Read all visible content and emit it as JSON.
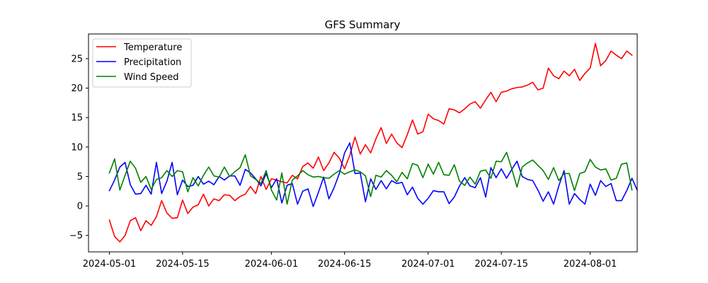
{
  "chart_data": {
    "type": "line",
    "title": "GFS Summary",
    "xlabel": "",
    "ylabel": "",
    "start_date": "2024-05-01",
    "x_step_days": 1,
    "xlim": [
      "2024-04-27",
      "2024-08-10"
    ],
    "ylim": [
      -7.8,
      29.2
    ],
    "x_ticks": [
      "2024-05-01",
      "2024-05-15",
      "2024-06-01",
      "2024-06-15",
      "2024-07-01",
      "2024-07-15",
      "2024-08-01"
    ],
    "y_ticks": [
      -5,
      0,
      5,
      10,
      15,
      20,
      25
    ],
    "grid": false,
    "legend_position": "top-left",
    "series": [
      {
        "name": "Temperature",
        "color": "#ff0000",
        "values": [
          -2.4,
          -5.2,
          -6.1,
          -5.0,
          -2.5,
          -2.0,
          -4.2,
          -2.5,
          -3.3,
          -1.8,
          0.9,
          -1.2,
          -2.1,
          -2.0,
          1.0,
          -1.3,
          -0.2,
          0.2,
          2.0,
          0.0,
          1.2,
          0.9,
          1.9,
          1.8,
          0.9,
          1.6,
          2.0,
          3.3,
          2.1,
          5.0,
          2.8,
          4.6,
          4.4,
          4.1,
          3.9,
          5.2,
          4.6,
          6.7,
          7.3,
          6.4,
          8.3,
          6.0,
          7.3,
          9.1,
          8.1,
          6.3,
          8.6,
          11.7,
          8.8,
          10.4,
          9.0,
          11.4,
          13.3,
          10.6,
          12.2,
          10.7,
          9.9,
          12.1,
          14.6,
          12.2,
          12.6,
          15.6,
          14.8,
          14.5,
          13.9,
          16.5,
          16.3,
          15.8,
          16.5,
          17.3,
          17.7,
          16.6,
          18.0,
          19.3,
          17.7,
          19.3,
          19.5,
          19.9,
          20.1,
          20.2,
          20.5,
          21.0,
          19.7,
          20.0,
          23.4,
          22.1,
          21.6,
          22.9,
          22.1,
          23.2,
          21.3,
          22.5,
          23.4,
          27.6,
          23.8,
          24.7,
          26.3,
          25.6,
          25.0,
          26.3,
          25.6
        ]
      },
      {
        "name": "Precipitation",
        "color": "#0000ff",
        "values": [
          2.6,
          4.4,
          6.6,
          7.4,
          3.6,
          2.0,
          2.1,
          3.5,
          2.0,
          7.4,
          2.1,
          4.2,
          7.4,
          1.9,
          4.4,
          3.3,
          3.5,
          5.0,
          3.7,
          4.2,
          3.6,
          5.0,
          4.4,
          5.1,
          5.1,
          3.5,
          6.2,
          5.6,
          4.6,
          3.4,
          5.5,
          3.1,
          4.6,
          0.5,
          3.5,
          3.8,
          0.3,
          2.5,
          2.9,
          -0.1,
          2.3,
          4.9,
          1.2,
          3.1,
          5.5,
          9.0,
          10.7,
          5.5,
          5.6,
          0.7,
          4.6,
          2.8,
          4.3,
          2.9,
          4.3,
          3.8,
          4.0,
          1.9,
          3.2,
          1.3,
          0.3,
          1.3,
          2.6,
          2.4,
          2.4,
          0.4,
          1.5,
          3.4,
          4.8,
          3.4,
          3.1,
          4.8,
          1.5,
          6.5,
          4.8,
          6.3,
          4.7,
          6.2,
          7.6,
          5.0,
          4.5,
          4.3,
          2.7,
          0.8,
          2.4,
          0.3,
          3.4,
          6.0,
          0.3,
          2.1,
          1.1,
          0.3,
          3.7,
          1.8,
          4.3,
          3.3,
          3.8,
          0.9,
          0.9,
          2.6,
          4.7,
          2.7
        ]
      },
      {
        "name": "Wind Speed",
        "color": "#008000",
        "values": [
          5.6,
          8.0,
          2.7,
          5.2,
          7.6,
          6.4,
          4.0,
          5.0,
          2.8,
          4.5,
          4.8,
          6.0,
          5.0,
          6.0,
          5.8,
          2.4,
          4.8,
          3.4,
          5.2,
          6.6,
          5.1,
          4.9,
          6.6,
          5.0,
          5.8,
          6.5,
          8.7,
          5.1,
          4.5,
          3.8,
          6.0,
          2.7,
          1.0,
          5.6,
          0.3,
          4.4,
          5.1,
          6.0,
          5.3,
          4.9,
          5.0,
          4.8,
          4.7,
          5.4,
          6.0,
          5.4,
          5.8,
          6.1,
          5.8,
          5.1,
          1.6,
          5.2,
          4.9,
          6.0,
          5.2,
          4.1,
          5.7,
          4.6,
          7.2,
          6.9,
          4.8,
          7.1,
          5.4,
          7.4,
          5.3,
          5.2,
          7.0,
          4.2,
          3.5,
          4.9,
          3.7,
          5.9,
          6.1,
          4.7,
          7.6,
          7.5,
          9.1,
          6.3,
          3.2,
          6.6,
          7.3,
          7.8,
          6.9,
          6.0,
          4.5,
          6.5,
          4.3,
          5.5,
          5.5,
          2.6,
          5.5,
          5.8,
          7.9,
          6.6,
          6.1,
          6.3,
          4.4,
          4.7,
          7.1,
          7.3,
          2.7
        ]
      }
    ]
  }
}
